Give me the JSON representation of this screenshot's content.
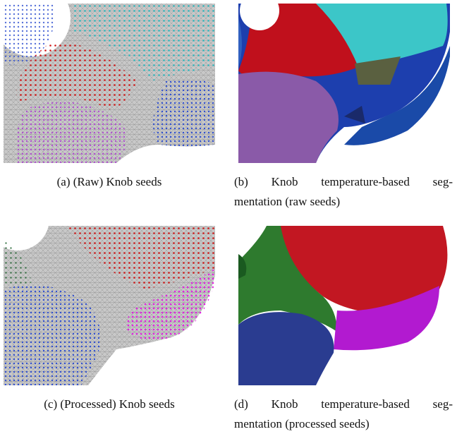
{
  "panels": [
    {
      "label": "(a)",
      "lines": [
        "(Raw) Knob seeds"
      ]
    },
    {
      "label": "(b)",
      "lines": [
        "Knob temperature-based seg-",
        "mentation (raw seeds)"
      ]
    },
    {
      "label": "(c)",
      "lines": [
        "(Processed) Knob seeds"
      ]
    },
    {
      "label": "(d)",
      "lines": [
        "Knob temperature-based seg-",
        "mentation (processed seeds)"
      ]
    }
  ]
}
